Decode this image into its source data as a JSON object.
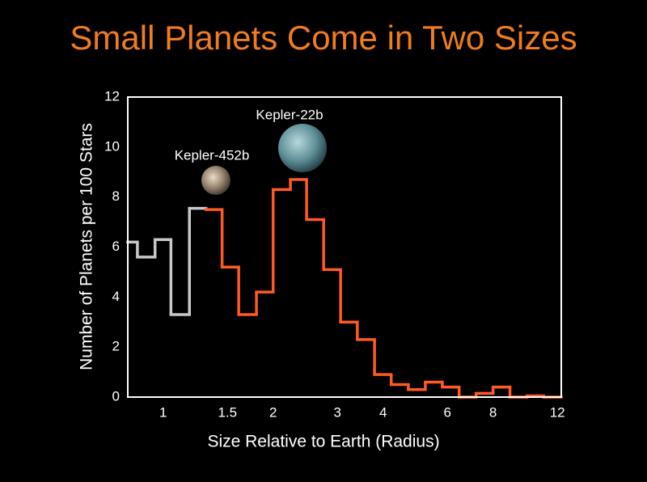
{
  "chart_data": {
    "type": "histogram",
    "title": "Small Planets Come in Two Sizes",
    "x_label": "Size Relative to Earth (Radius)",
    "y_label": "Number of Planets per 100 Stars",
    "annotations": [
      "Kepler-452b",
      "Kepler-22b"
    ],
    "x_scale": "log",
    "xlim": [
      0.8,
      12.3
    ],
    "xticks": [
      1,
      1.5,
      2,
      3,
      4,
      6,
      8,
      12
    ],
    "ylim": [
      0,
      12
    ],
    "yticks": [
      0,
      2,
      4,
      6,
      8,
      10,
      12
    ],
    "grid": false,
    "series": [
      {
        "color": "#c8c8c8",
        "bins": [
          0.8,
          0.85,
          0.95,
          1.05,
          1.18,
          1.31
        ],
        "values": [
          6.2,
          5.6,
          6.3,
          3.3,
          7.55
        ]
      },
      {
        "color": "#ff5a24",
        "bins": [
          1.31,
          1.45,
          1.61,
          1.8,
          2.0,
          2.23,
          2.47,
          2.75,
          3.06,
          3.4,
          3.79,
          4.21,
          4.69,
          5.22,
          5.81,
          6.46,
          7.19,
          8.0,
          8.9,
          9.91,
          11.0,
          12.3
        ],
        "values": [
          7.5,
          5.2,
          3.3,
          4.2,
          8.3,
          8.7,
          7.1,
          5.1,
          3.0,
          2.3,
          0.9,
          0.5,
          0.3,
          0.6,
          0.4,
          0,
          0.15,
          0.4,
          0,
          0.05,
          0
        ]
      }
    ]
  }
}
